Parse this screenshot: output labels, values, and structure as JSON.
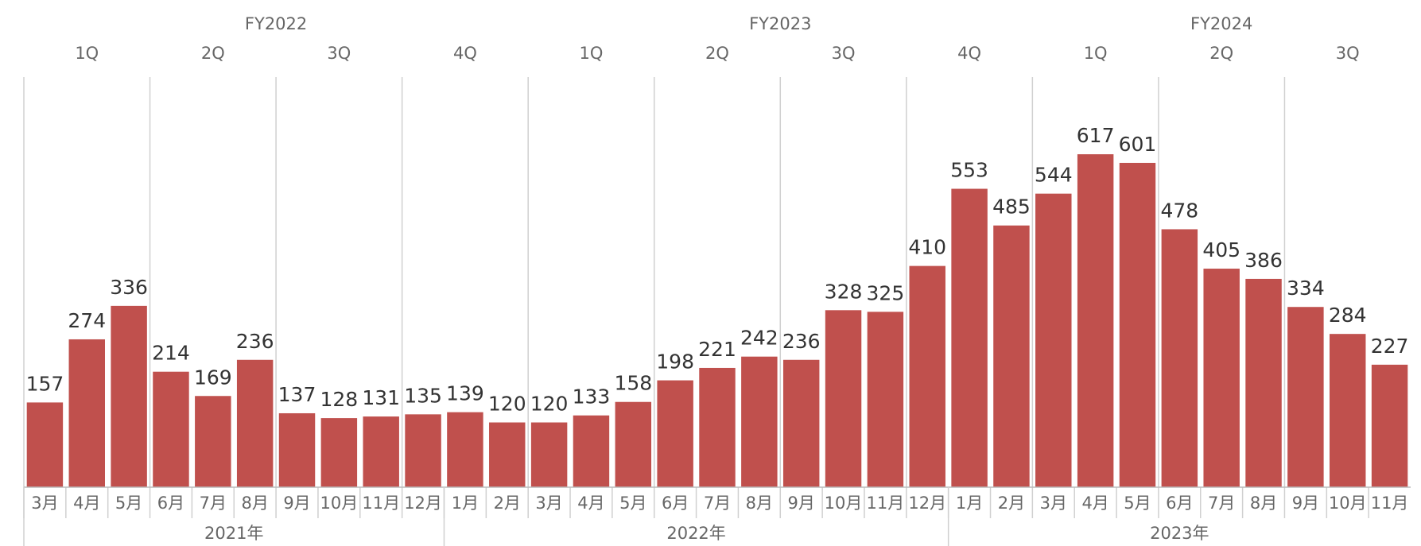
{
  "chart_data": {
    "type": "bar",
    "color": "#c0504d",
    "ylim": [
      0,
      760
    ],
    "fiscal_years": [
      "FY2022",
      "FY2023",
      "FY2024"
    ],
    "quarters": [
      "1Q",
      "2Q",
      "3Q",
      "4Q",
      "1Q",
      "2Q",
      "3Q",
      "4Q",
      "1Q",
      "2Q",
      "3Q"
    ],
    "years": [
      {
        "label": "2021年",
        "months": [
          "3月",
          "4月",
          "5月",
          "6月",
          "7月",
          "8月",
          "9月",
          "10月",
          "11月",
          "12月"
        ],
        "values": [
          157,
          274,
          336,
          214,
          169,
          236,
          137,
          128,
          131,
          135
        ]
      },
      {
        "label": "2022年",
        "months": [
          "1月",
          "2月",
          "3月",
          "4月",
          "5月",
          "6月",
          "7月",
          "8月",
          "9月",
          "10月",
          "11月",
          "12月"
        ],
        "values": [
          139,
          120,
          120,
          133,
          158,
          198,
          221,
          242,
          236,
          328,
          325,
          410
        ]
      },
      {
        "label": "2023年",
        "months": [
          "1月",
          "2月",
          "3月",
          "4月",
          "5月",
          "6月",
          "7月",
          "8月",
          "9月",
          "10月",
          "11月"
        ],
        "values": [
          553,
          485,
          544,
          617,
          601,
          478,
          405,
          386,
          334,
          284,
          227
        ]
      }
    ]
  }
}
